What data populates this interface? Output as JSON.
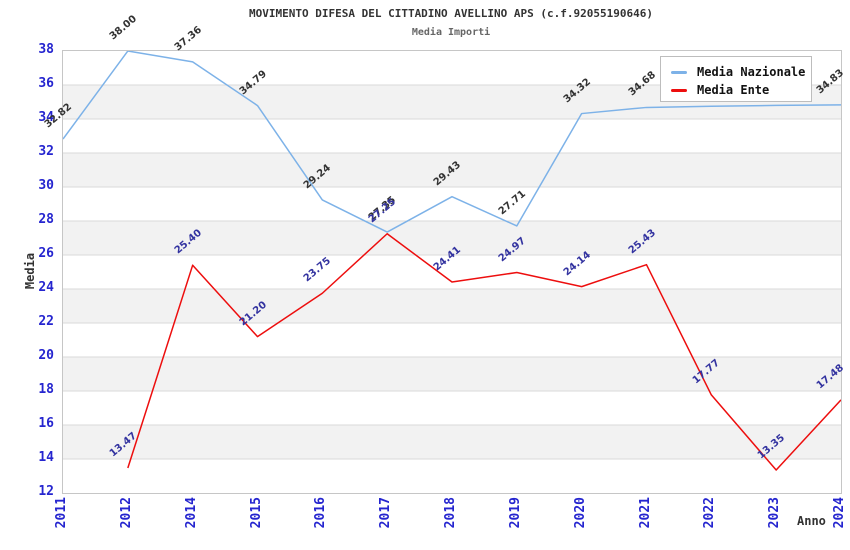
{
  "page": {
    "title": "MOVIMENTO DIFESA DEL CITTADINO AVELLINO APS (c.f.92055190646)",
    "subtitle": "Media Importi"
  },
  "legend": {
    "items": [
      {
        "label": "Media Nazionale",
        "color": "#7db2e8"
      },
      {
        "label": "Media Ente",
        "color": "#ed0e0e"
      }
    ]
  },
  "colors": {
    "tick_label": "#2525cf",
    "band_gray": "#f2f2f2",
    "gridline": "#d9d9d9",
    "plot_border": "#c6c6c6",
    "label_nazionale": "#333333",
    "label_ente": "#3333a0"
  },
  "chart_data": {
    "type": "line",
    "title": "MOVIMENTO DIFESA DEL CITTADINO AVELLINO APS (c.f.92055190646)",
    "subtitle": "Media Importi",
    "xlabel": "Anno",
    "ylabel": "Media",
    "ylim": [
      12,
      38
    ],
    "ytick_step": 2,
    "grid": "horizontal",
    "alternating_bands": true,
    "legend_position": "top-right",
    "categories": [
      "2011",
      "2012",
      "2014",
      "2015",
      "2016",
      "2017",
      "2018",
      "2019",
      "2020",
      "2021",
      "2022",
      "2023",
      "2024"
    ],
    "yticks": [
      "38",
      "36",
      "34",
      "32",
      "30",
      "28",
      "26",
      "24",
      "22",
      "20",
      "18",
      "16",
      "14",
      "12"
    ],
    "series": [
      {
        "name": "Media Nazionale",
        "color": "#7db2e8",
        "label_color": "#333333",
        "values": [
          32.82,
          38.0,
          37.36,
          34.79,
          29.24,
          27.35,
          29.43,
          27.71,
          34.32,
          34.68,
          34.75,
          34.8,
          34.83
        ],
        "labels": [
          "32.82",
          "38.00",
          "37.36",
          "34.79",
          "29.24",
          "27.35",
          "29.43",
          "27.71",
          "34.32",
          "34.68",
          null,
          null,
          "34.83"
        ]
      },
      {
        "name": "Media Ente",
        "color": "#ed0e0e",
        "label_color": "#3333a0",
        "values": [
          null,
          13.47,
          25.4,
          21.2,
          23.75,
          27.25,
          24.41,
          24.97,
          24.14,
          25.43,
          17.77,
          13.35,
          17.48
        ],
        "labels": [
          null,
          "13.47",
          "25.40",
          "21.20",
          "23.75",
          "27.25",
          "24.41",
          "24.97",
          "24.14",
          "25.43",
          "17.77",
          "13.35",
          "17.48"
        ]
      }
    ]
  }
}
